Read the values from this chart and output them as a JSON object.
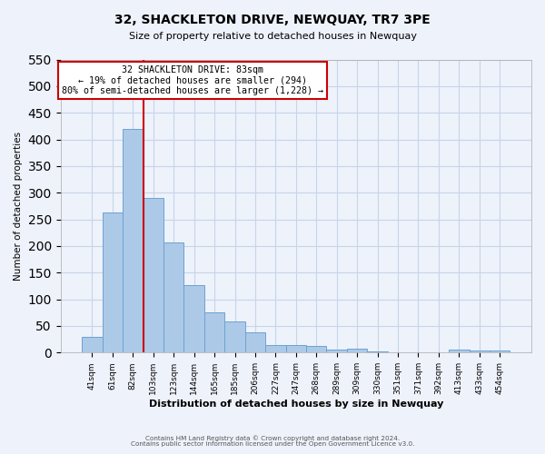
{
  "title": "32, SHACKLETON DRIVE, NEWQUAY, TR7 3PE",
  "subtitle": "Size of property relative to detached houses in Newquay",
  "xlabel": "Distribution of detached houses by size in Newquay",
  "ylabel": "Number of detached properties",
  "bar_labels": [
    "41sqm",
    "61sqm",
    "82sqm",
    "103sqm",
    "123sqm",
    "144sqm",
    "165sqm",
    "185sqm",
    "206sqm",
    "227sqm",
    "247sqm",
    "268sqm",
    "289sqm",
    "309sqm",
    "330sqm",
    "351sqm",
    "371sqm",
    "392sqm",
    "413sqm",
    "433sqm",
    "454sqm"
  ],
  "bar_values": [
    30,
    263,
    420,
    290,
    206,
    126,
    75,
    58,
    38,
    15,
    15,
    12,
    5,
    8,
    3,
    0,
    0,
    0,
    5,
    4,
    4
  ],
  "bar_color": "#adc9e8",
  "bar_edge_color": "#6ba3d0",
  "bar_edge_width": 0.7,
  "grid_color": "#c8d4e8",
  "bg_color": "#eef2fb",
  "ylim": [
    0,
    550
  ],
  "yticks": [
    0,
    50,
    100,
    150,
    200,
    250,
    300,
    350,
    400,
    450,
    500,
    550
  ],
  "vline_color": "#cc0000",
  "annotation_title": "32 SHACKLETON DRIVE: 83sqm",
  "annotation_line1": "← 19% of detached houses are smaller (294)",
  "annotation_line2": "80% of semi-detached houses are larger (1,228) →",
  "annotation_box_color": "#ffffff",
  "annotation_box_edge": "#cc0000",
  "footer1": "Contains HM Land Registry data © Crown copyright and database right 2024.",
  "footer2": "Contains public sector information licensed under the Open Government Licence v3.0."
}
